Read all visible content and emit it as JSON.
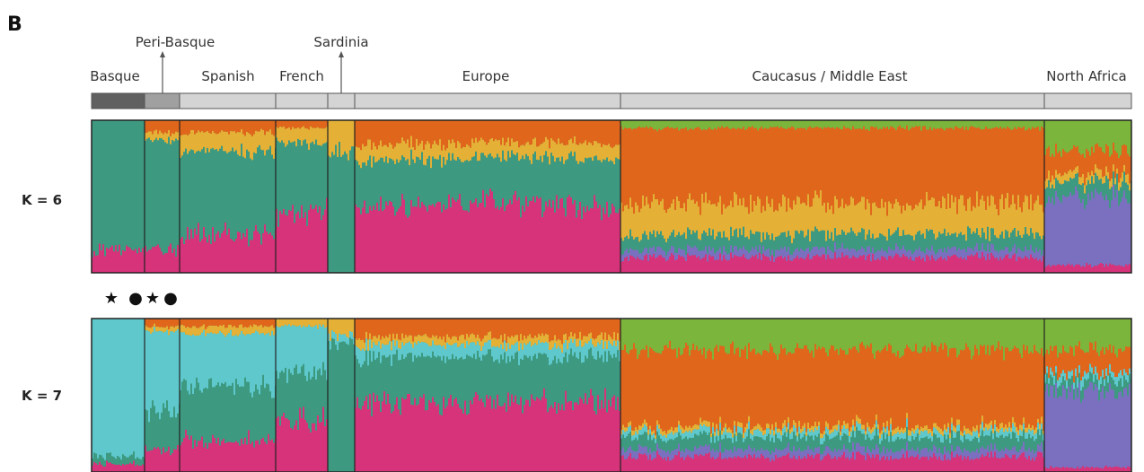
{
  "panel_letter": "B",
  "chart_data": {
    "type": "stacked-bar",
    "description_units": "per-individual admixture proportions (0-1), averaged per population segment",
    "populations": [
      {
        "key": "basque",
        "label": "Basque",
        "group_color": "#606060"
      },
      {
        "key": "peri_basque",
        "label": "Peri-Basque",
        "group_color": "#a0a0a0"
      },
      {
        "key": "spanish",
        "label": "Spanish",
        "group_color": "#d4d4d4"
      },
      {
        "key": "french",
        "label": "French",
        "group_color": "#d4d4d4"
      },
      {
        "key": "sardinia",
        "label": "Sardinia",
        "group_color": "#d4d4d4"
      },
      {
        "key": "europe",
        "label": "Europe",
        "group_color": "#d4d4d4"
      },
      {
        "key": "caucasus_me",
        "label": "Caucasus / Middle East",
        "group_color": "#d4d4d4"
      },
      {
        "key": "north_africa",
        "label": "North Africa",
        "group_color": "#d4d4d4"
      }
    ],
    "components": {
      "magenta": "#d6337a",
      "teal": "#3d9a80",
      "yellow": "#e4b036",
      "orange": "#e0661c",
      "green": "#7cb53b",
      "purple": "#7b70bf",
      "cyan": "#5ec8cc"
    },
    "panels": [
      {
        "label": "K = 6",
        "markers": [],
        "segments": [
          {
            "magenta": 0.15,
            "teal": 0.85,
            "yellow": 0,
            "orange": 0,
            "green": 0,
            "purple": 0
          },
          {
            "magenta": 0.15,
            "teal": 0.72,
            "yellow": 0.05,
            "orange": 0.08,
            "green": 0,
            "purple": 0
          },
          {
            "magenta": 0.25,
            "teal": 0.55,
            "yellow": 0.12,
            "orange": 0.08,
            "green": 0,
            "purple": 0
          },
          {
            "magenta": 0.4,
            "teal": 0.45,
            "yellow": 0.1,
            "orange": 0.05,
            "green": 0,
            "purple": 0
          },
          {
            "magenta": 0.0,
            "teal": 0.8,
            "yellow": 0.2,
            "orange": 0,
            "green": 0,
            "purple": 0
          },
          {
            "magenta": 0.45,
            "teal": 0.3,
            "yellow": 0.1,
            "orange": 0.15,
            "green": 0,
            "purple": 0
          },
          {
            "magenta": 0.1,
            "teal": 0.1,
            "yellow": 0.2,
            "orange": 0.5,
            "green": 0.05,
            "purple": 0.05
          },
          {
            "magenta": 0.05,
            "teal": 0.1,
            "yellow": 0.05,
            "orange": 0.15,
            "green": 0.2,
            "purple": 0.45
          }
        ]
      },
      {
        "label": "K = 7",
        "markers": [
          "★",
          "●",
          "★",
          "●"
        ],
        "segments": [
          {
            "magenta": 0.05,
            "teal": 0.05,
            "cyan": 0.9,
            "yellow": 0,
            "orange": 0,
            "green": 0,
            "purple": 0
          },
          {
            "magenta": 0.15,
            "teal": 0.25,
            "cyan": 0.52,
            "yellow": 0.03,
            "orange": 0.05,
            "green": 0,
            "purple": 0
          },
          {
            "magenta": 0.2,
            "teal": 0.35,
            "cyan": 0.35,
            "yellow": 0.05,
            "orange": 0.05,
            "green": 0,
            "purple": 0
          },
          {
            "magenta": 0.35,
            "teal": 0.3,
            "cyan": 0.3,
            "yellow": 0.05,
            "orange": 0,
            "green": 0,
            "purple": 0
          },
          {
            "magenta": 0.0,
            "teal": 0.85,
            "cyan": 0.05,
            "yellow": 0.1,
            "orange": 0,
            "green": 0,
            "purple": 0
          },
          {
            "magenta": 0.45,
            "teal": 0.3,
            "cyan": 0.08,
            "yellow": 0.05,
            "orange": 0.12,
            "green": 0,
            "purple": 0
          },
          {
            "magenta": 0.1,
            "teal": 0.08,
            "cyan": 0.04,
            "yellow": 0.03,
            "orange": 0.5,
            "green": 0.2,
            "purple": 0.05
          },
          {
            "magenta": 0.03,
            "teal": 0.07,
            "cyan": 0.05,
            "yellow": 0,
            "orange": 0.15,
            "green": 0.2,
            "purple": 0.5
          }
        ]
      }
    ],
    "component_order": [
      "magenta",
      "purple",
      "teal",
      "cyan",
      "yellow",
      "orange",
      "green"
    ]
  }
}
